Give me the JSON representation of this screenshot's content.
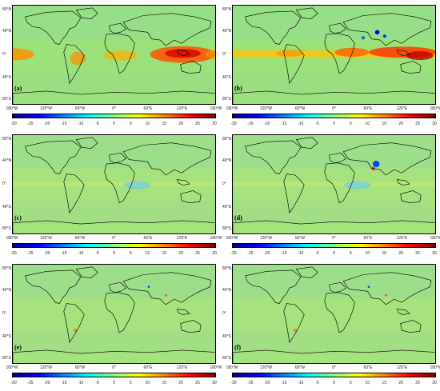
{
  "lat_labels": [
    "80°N",
    "40°N",
    "0°",
    "40°S",
    "80°S"
  ],
  "lon_labels": [
    "180°W",
    "120°W",
    "60°W",
    "0°",
    "60°E",
    "120°E",
    "180°W"
  ],
  "colorbar_ticks": [
    "-30",
    "-25",
    "-20",
    "-15",
    "-10",
    "-5",
    "0",
    "5",
    "10",
    "15",
    "20",
    "25",
    "30"
  ],
  "colorbar_range": [
    -30,
    30
  ],
  "colormap": [
    "#00008f",
    "#0000ff",
    "#0080ff",
    "#00ffff",
    "#80ff80",
    "#ffff00",
    "#ff8000",
    "#ff0000",
    "#800000"
  ],
  "panels": [
    {
      "label": "(a)",
      "background_color": "#9be27a",
      "tropical_band": "strong-positive"
    },
    {
      "label": "(b)",
      "background_color": "#9be27a",
      "tropical_band": "strong-positive"
    },
    {
      "label": "(c)",
      "background_color": "#a6e27e",
      "tropical_band": "weak"
    },
    {
      "label": "(d)",
      "background_color": "#a6e27e",
      "tropical_band": "weak"
    },
    {
      "label": "(e)",
      "background_color": "#a6e27e",
      "tropical_band": "none"
    },
    {
      "label": "(f)",
      "background_color": "#a6e27e",
      "tropical_band": "none"
    }
  ]
}
